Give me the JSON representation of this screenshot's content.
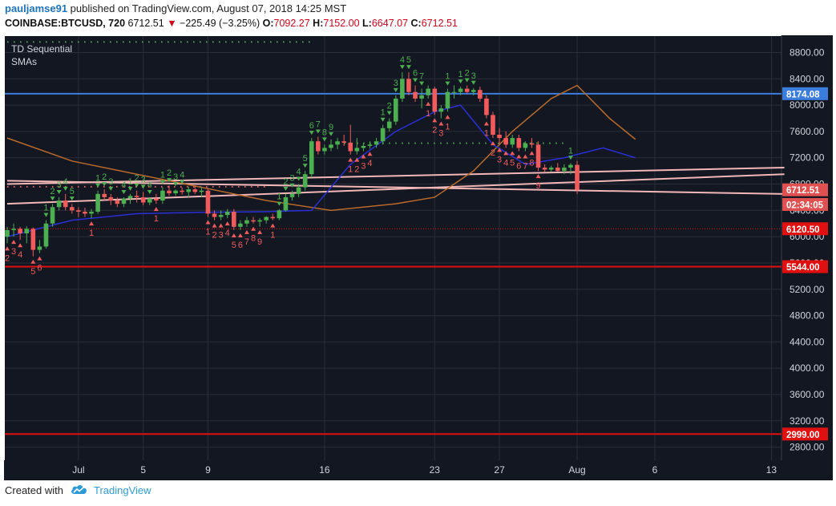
{
  "header": {
    "author": "pauljamse91",
    "published_text": "published on TradingView.com, August 07, 2018 14:25 MST",
    "symbol": "COINBASE:BTCUSD, 720",
    "last": "6712.51",
    "change": "−225.49 (−3.25%)",
    "o_label": "O:",
    "o_value": "7092.27",
    "h_label": "H:",
    "h_value": "7152.00",
    "l_label": "L:",
    "l_value": "6647.07",
    "c_label": "C:",
    "c_value": "6712.51"
  },
  "legend": {
    "indicator1": "TD Sequential",
    "indicator2": "SMAs"
  },
  "footer": {
    "created_with": "Created with",
    "brand": "TradingView",
    "logo_icon": "tradingview-cloud-icon"
  },
  "colors": {
    "background": "#131722",
    "grid": "#2a2e39",
    "up": "#4caf50",
    "down": "#f25b5b",
    "sma_blue": "#2a30d6",
    "sma_orange": "#b96a2a",
    "trendline": "#f2b8b8",
    "resistance_blue": "#3b7ddd",
    "support_red": "#e01010"
  },
  "chart_data": {
    "type": "candlestick",
    "y_axis": {
      "ylim": [
        2600,
        9050
      ],
      "ticks": [
        "2800.00",
        "3200.00",
        "3600.00",
        "4000.00",
        "4400.00",
        "4800.00",
        "5200.00",
        "5600.00",
        "6000.00",
        "6400.00",
        "6800.00",
        "7200.00",
        "7600.00",
        "8000.00",
        "8400.00",
        "8800.00"
      ]
    },
    "x_axis": {
      "labels": [
        {
          "label": "Jul",
          "index": 11
        },
        {
          "label": "5",
          "index": 21
        },
        {
          "label": "9",
          "index": 31
        },
        {
          "label": "16",
          "index": 49
        },
        {
          "label": "23",
          "index": 66
        },
        {
          "label": "27",
          "index": 76
        },
        {
          "label": "Aug",
          "index": 88
        },
        {
          "label": "6",
          "index": 100
        },
        {
          "label": "13",
          "index": 118
        }
      ]
    },
    "candles": [
      [
        6000,
        6150,
        5900,
        6100
      ],
      [
        6100,
        6200,
        6000,
        6120
      ],
      [
        6120,
        6150,
        5950,
        6050
      ],
      [
        6050,
        6160,
        5900,
        6120
      ],
      [
        6120,
        6140,
        5700,
        5800
      ],
      [
        5800,
        5950,
        5750,
        5850
      ],
      [
        5850,
        6250,
        5820,
        6200
      ],
      [
        6200,
        6500,
        6150,
        6450
      ],
      [
        6450,
        6600,
        6400,
        6550
      ],
      [
        6550,
        6650,
        6400,
        6450
      ],
      [
        6450,
        6500,
        6350,
        6400
      ],
      [
        6400,
        6450,
        6300,
        6380
      ],
      [
        6380,
        6440,
        6300,
        6350
      ],
      [
        6350,
        6420,
        6280,
        6380
      ],
      [
        6380,
        6700,
        6350,
        6650
      ],
      [
        6650,
        6720,
        6550,
        6600
      ],
      [
        6600,
        6650,
        6480,
        6550
      ],
      [
        6550,
        6600,
        6450,
        6500
      ],
      [
        6500,
        6600,
        6450,
        6580
      ],
      [
        6580,
        6650,
        6500,
        6620
      ],
      [
        6620,
        6700,
        6520,
        6600
      ],
      [
        6600,
        6680,
        6480,
        6520
      ],
      [
        6520,
        6600,
        6480,
        6580
      ],
      [
        6580,
        6650,
        6500,
        6550
      ],
      [
        6550,
        6750,
        6500,
        6700
      ],
      [
        6700,
        6780,
        6620,
        6660
      ],
      [
        6660,
        6720,
        6620,
        6700
      ],
      [
        6700,
        6750,
        6640,
        6680
      ],
      [
        6680,
        6760,
        6600,
        6720
      ],
      [
        6720,
        6780,
        6650,
        6680
      ],
      [
        6680,
        6760,
        6600,
        6700
      ],
      [
        6700,
        6740,
        6300,
        6350
      ],
      [
        6350,
        6400,
        6250,
        6300
      ],
      [
        6300,
        6400,
        6250,
        6330
      ],
      [
        6330,
        6420,
        6280,
        6380
      ],
      [
        6380,
        6420,
        6100,
        6150
      ],
      [
        6150,
        6250,
        6100,
        6200
      ],
      [
        6200,
        6300,
        6150,
        6250
      ],
      [
        6250,
        6300,
        6200,
        6230
      ],
      [
        6230,
        6280,
        6150,
        6250
      ],
      [
        6250,
        6310,
        6200,
        6300
      ],
      [
        6300,
        6350,
        6250,
        6280
      ],
      [
        6280,
        6420,
        6250,
        6400
      ],
      [
        6400,
        6650,
        6380,
        6600
      ],
      [
        6600,
        6700,
        6550,
        6650
      ],
      [
        6650,
        6800,
        6600,
        6750
      ],
      [
        6750,
        7000,
        6700,
        6950
      ],
      [
        6950,
        7500,
        6900,
        7450
      ],
      [
        7450,
        7520,
        7250,
        7300
      ],
      [
        7300,
        7400,
        7250,
        7350
      ],
      [
        7350,
        7480,
        7300,
        7400
      ],
      [
        7400,
        7500,
        7330,
        7450
      ],
      [
        7450,
        7550,
        7380,
        7430
      ],
      [
        7430,
        7700,
        7250,
        7300
      ],
      [
        7300,
        7500,
        7250,
        7350
      ],
      [
        7350,
        7420,
        7300,
        7380
      ],
      [
        7380,
        7450,
        7340,
        7400
      ],
      [
        7400,
        7500,
        7350,
        7450
      ],
      [
        7450,
        7700,
        7400,
        7650
      ],
      [
        7650,
        7800,
        7600,
        7750
      ],
      [
        7750,
        8150,
        7700,
        8100
      ],
      [
        8100,
        8500,
        8050,
        8400
      ],
      [
        8400,
        8500,
        8150,
        8200
      ],
      [
        8200,
        8300,
        8050,
        8100
      ],
      [
        8100,
        8250,
        7950,
        8150
      ],
      [
        8150,
        8300,
        8100,
        8250
      ],
      [
        8250,
        8280,
        7850,
        7900
      ],
      [
        7900,
        8000,
        7800,
        7950
      ],
      [
        7950,
        8250,
        7900,
        8200
      ],
      [
        8200,
        8300,
        8100,
        8200
      ],
      [
        8200,
        8280,
        8150,
        8250
      ],
      [
        8250,
        8300,
        8180,
        8200
      ],
      [
        8200,
        8260,
        8150,
        8230
      ],
      [
        8230,
        8280,
        8050,
        8100
      ],
      [
        8100,
        8150,
        7800,
        7850
      ],
      [
        7850,
        7900,
        7500,
        7550
      ],
      [
        7550,
        7650,
        7400,
        7500
      ],
      [
        7500,
        7600,
        7350,
        7400
      ],
      [
        7400,
        7550,
        7350,
        7500
      ],
      [
        7500,
        7550,
        7300,
        7350
      ],
      [
        7350,
        7450,
        7300,
        7420
      ],
      [
        7420,
        7500,
        7350,
        7400
      ],
      [
        7400,
        7450,
        7000,
        7050
      ],
      [
        7050,
        7100,
        6980,
        7020
      ],
      [
        7020,
        7080,
        6990,
        7050
      ],
      [
        7050,
        7120,
        6990,
        7000
      ],
      [
        7000,
        7100,
        6950,
        7050
      ],
      [
        7050,
        7120,
        6950,
        7092
      ],
      [
        7092,
        7152,
        6647,
        6712
      ]
    ],
    "sma_fast_blue": [
      [
        0,
        6000
      ],
      [
        10,
        6250
      ],
      [
        20,
        6350
      ],
      [
        30,
        6370
      ],
      [
        40,
        6380
      ],
      [
        47,
        6400
      ],
      [
        53,
        7100
      ],
      [
        60,
        7600
      ],
      [
        66,
        7900
      ],
      [
        70,
        8000
      ],
      [
        75,
        7400
      ],
      [
        80,
        7100
      ],
      [
        86,
        7200
      ],
      [
        92,
        7350
      ],
      [
        97,
        7200
      ]
    ],
    "sma_slow_orange": [
      [
        0,
        7500
      ],
      [
        10,
        7150
      ],
      [
        20,
        6950
      ],
      [
        30,
        6750
      ],
      [
        40,
        6550
      ],
      [
        50,
        6400
      ],
      [
        60,
        6500
      ],
      [
        66,
        6600
      ],
      [
        72,
        7000
      ],
      [
        78,
        7600
      ],
      [
        84,
        8100
      ],
      [
        88,
        8300
      ],
      [
        93,
        7800
      ],
      [
        97,
        7480
      ]
    ],
    "trendlines": [
      {
        "from": [
          0,
          6800
        ],
        "to": [
          120,
          7050
        ]
      },
      {
        "from": [
          0,
          6500
        ],
        "to": [
          120,
          6950
        ]
      },
      {
        "from": [
          0,
          6850
        ],
        "to": [
          120,
          6650
        ]
      }
    ],
    "horizontal_lines": [
      {
        "value": 8174.08,
        "label": "8174.08",
        "color": "#3b7ddd"
      },
      {
        "value": 5544.0,
        "label": "5544.00",
        "color": "#e01010"
      },
      {
        "value": 2999.0,
        "label": "2999.00",
        "color": "#e01010"
      },
      {
        "value": 6120.5,
        "label": "6120.50",
        "color": "#e01010",
        "dotted": true
      }
    ],
    "price_labels": [
      {
        "value": 6712.51,
        "label": "6712.51",
        "color": "#e05050"
      },
      {
        "value": 6490,
        "label": "02:34:05",
        "color": "#e05050"
      }
    ],
    "td_counts": [
      {
        "index": 0,
        "digit": "2",
        "side": "down"
      },
      {
        "index": 1,
        "digit": "3",
        "side": "down"
      },
      {
        "index": 2,
        "digit": "4",
        "side": "down"
      },
      {
        "index": 4,
        "digit": "5",
        "side": "down"
      },
      {
        "index": 5,
        "digit": "6",
        "side": "down"
      },
      {
        "index": 13,
        "digit": "1",
        "side": "down"
      },
      {
        "index": 23,
        "digit": "1",
        "side": "down"
      },
      {
        "index": 31,
        "digit": "1",
        "side": "down"
      },
      {
        "index": 32,
        "digit": "2",
        "side": "down"
      },
      {
        "index": 33,
        "digit": "3",
        "side": "down"
      },
      {
        "index": 34,
        "digit": "4",
        "side": "down"
      },
      {
        "index": 35,
        "digit": "5",
        "side": "down"
      },
      {
        "index": 36,
        "digit": "6",
        "side": "down"
      },
      {
        "index": 37,
        "digit": "7",
        "side": "down"
      },
      {
        "index": 38,
        "digit": "8",
        "side": "down"
      },
      {
        "index": 39,
        "digit": "9",
        "side": "down"
      },
      {
        "index": 41,
        "digit": "1",
        "side": "down"
      },
      {
        "index": 53,
        "digit": "1",
        "side": "down"
      },
      {
        "index": 54,
        "digit": "2",
        "side": "down"
      },
      {
        "index": 55,
        "digit": "3",
        "side": "down"
      },
      {
        "index": 56,
        "digit": "4",
        "side": "down"
      },
      {
        "index": 65,
        "digit": "1",
        "side": "down"
      },
      {
        "index": 66,
        "digit": "2",
        "side": "down"
      },
      {
        "index": 67,
        "digit": "3",
        "side": "down"
      },
      {
        "index": 68,
        "digit": "1",
        "side": "down"
      },
      {
        "index": 74,
        "digit": "1",
        "side": "down"
      },
      {
        "index": 75,
        "digit": "2",
        "side": "down"
      },
      {
        "index": 76,
        "digit": "3",
        "side": "down"
      },
      {
        "index": 77,
        "digit": "4",
        "side": "down"
      },
      {
        "index": 78,
        "digit": "5",
        "side": "down"
      },
      {
        "index": 79,
        "digit": "6",
        "side": "down"
      },
      {
        "index": 80,
        "digit": "7",
        "side": "down"
      },
      {
        "index": 81,
        "digit": "8",
        "side": "down"
      },
      {
        "index": 82,
        "digit": "9",
        "side": "down"
      },
      {
        "index": 89,
        "digit": "1",
        "side": "down"
      },
      {
        "index": 6,
        "digit": "1",
        "side": "up"
      },
      {
        "index": 7,
        "digit": "2",
        "side": "up"
      },
      {
        "index": 8,
        "digit": "3",
        "side": "up"
      },
      {
        "index": 9,
        "digit": "4",
        "side": "up"
      },
      {
        "index": 10,
        "digit": "5",
        "side": "up"
      },
      {
        "index": 14,
        "digit": "1",
        "side": "up"
      },
      {
        "index": 15,
        "digit": "2",
        "side": "up"
      },
      {
        "index": 16,
        "digit": "3",
        "side": "up"
      },
      {
        "index": 18,
        "digit": "4",
        "side": "up"
      },
      {
        "index": 19,
        "digit": "1",
        "side": "up"
      },
      {
        "index": 20,
        "digit": "2",
        "side": "up"
      },
      {
        "index": 21,
        "digit": "3",
        "side": "up"
      },
      {
        "index": 22,
        "digit": "4",
        "side": "up"
      },
      {
        "index": 24,
        "digit": "1",
        "side": "up"
      },
      {
        "index": 25,
        "digit": "2",
        "side": "up"
      },
      {
        "index": 26,
        "digit": "3",
        "side": "up"
      },
      {
        "index": 27,
        "digit": "4",
        "side": "up"
      },
      {
        "index": 42,
        "digit": "1",
        "side": "up"
      },
      {
        "index": 43,
        "digit": "2",
        "side": "up"
      },
      {
        "index": 44,
        "digit": "3",
        "side": "up"
      },
      {
        "index": 45,
        "digit": "4",
        "side": "up"
      },
      {
        "index": 46,
        "digit": "5",
        "side": "up"
      },
      {
        "index": 47,
        "digit": "6",
        "side": "up"
      },
      {
        "index": 48,
        "digit": "7",
        "side": "up"
      },
      {
        "index": 49,
        "digit": "8",
        "side": "up"
      },
      {
        "index": 50,
        "digit": "9",
        "side": "up"
      },
      {
        "index": 58,
        "digit": "1",
        "side": "up"
      },
      {
        "index": 59,
        "digit": "2",
        "side": "up"
      },
      {
        "index": 60,
        "digit": "3",
        "side": "up"
      },
      {
        "index": 61,
        "digit": "4",
        "side": "up"
      },
      {
        "index": 62,
        "digit": "5",
        "side": "up"
      },
      {
        "index": 63,
        "digit": "6",
        "side": "up"
      },
      {
        "index": 64,
        "digit": "7",
        "side": "up"
      },
      {
        "index": 68,
        "digit": "1",
        "side": "up"
      },
      {
        "index": 70,
        "digit": "1",
        "side": "up"
      },
      {
        "index": 71,
        "digit": "2",
        "side": "up"
      },
      {
        "index": 72,
        "digit": "3",
        "side": "up"
      },
      {
        "index": 87,
        "digit": "1",
        "side": "up"
      }
    ],
    "td_dot_lines": [
      {
        "value": 8960,
        "from": 0,
        "to": 47,
        "color": "#4caf50"
      },
      {
        "value": 7420,
        "from": 52,
        "to": 86,
        "color": "#4caf50"
      },
      {
        "value": 6760,
        "from": 0,
        "to": 40,
        "color": "#f25b5b"
      }
    ]
  }
}
